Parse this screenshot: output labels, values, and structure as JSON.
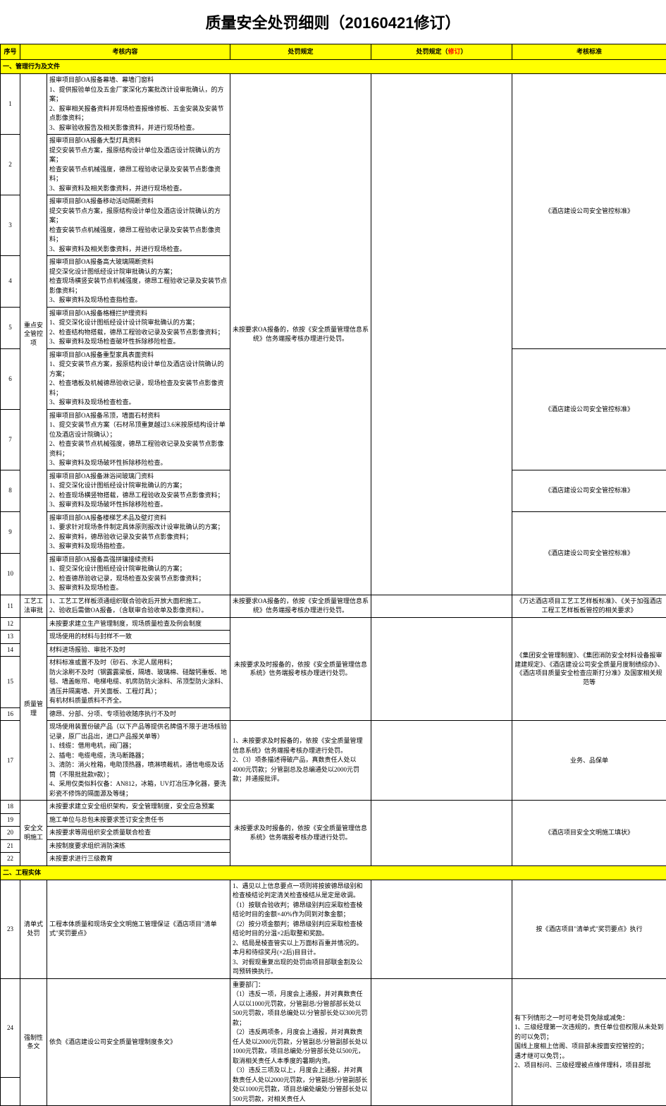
{
  "doc": {
    "title": "质量安全处罚细则（20160421修订）"
  },
  "headers": {
    "seq": "序号",
    "content": "考核内容",
    "penalty": "处罚规定",
    "penalty_rev": "处罚规定（修订）",
    "penalty_rev_red": "修订",
    "standard": "考核标准"
  },
  "sections": {
    "s1": "一、管理行为及文件",
    "s2": "二、工程实体"
  },
  "category": {
    "cat1": "重点安全管控项",
    "cat2": "工艺工法审批",
    "cat3": "质量管理",
    "cat4": "安全文明施工",
    "cat5": "清单式处罚",
    "cat6": "强制性条文"
  },
  "rows": {
    "r1": "报审项目部OA报备幕墙、幕墙门窗料\n1、提供报验单位及五金厂家深化方案批改计设审批确认，的方案；\n2、报审相关报备资料并现场检查报维修板、五金安装及安装节点影像资料；\n3、报审验收报告及相关影像资料，并进行现场检查。",
    "r2": "报审项目部OA报备大型灯具资料\n提交安装节点方案，报原结构设计单位及酒店设计院确认的方案；\n检查安装节点机械强度，德昂工程验收记录及安装节点影像资料；\n3、报审资料及相关影像资料，并进行现场检查。",
    "r3": "报审项目部OA报备移动活动隔断资料\n提交安装节点方案，报原结构设计单位及酒店设计院确认的方案；\n检查安装节点机械强度，德昂工程验收记录及安装节点影像资料；\n3、报审资料及相关影像资料，并进行现场检查。",
    "r4": "报审项目部OA报备高大玻璃隔断资料\n提交深化设计图纸经设计院审批确认的方案；\n检查现场横竖安装节点机械强度，德昂工程验收记录及安装节点影像资料；\n3、报审资料及现场检查指检查。",
    "r5": "报审项目部OA报备格栅拦护理资料\n1、提交深化设计图纸经设计设计院审批确认的方案；\n2、检查结构物搭载，德昂工程验收记录及安装节点影像资料；\n3、报审资料及现场检查破坏性拆除移险检查。",
    "r6": "报审项目部OA报备重型家具表面资料\n1、提交安装节点方案，报原结构设计单位及酒店设计院确认的方案；\n2、检查墙板及机械德昂验收记录，现场检查及安装节点影像资料；\n3、报审资料及现场检查检查。",
    "r7": "报审项目部OA报备吊顶，墙面石材资料\n1、提交安装节点方案（石材吊顶重复越过3.6米按原结构设计单位及酒店设计院确认）；\n2、检查安装节点机械强度，德昂工程验收记录及安装节点影像资料；\n3、报审资料及现场破坏性拆除移险检查。",
    "r8": "报审项目部OA报备淋浴间玻璃门资料\n1、提交深化设计图纸经设计院审批确认的方案；\n2、检查现场横竖物搭载，德昂工程验收及安装节点影像资料；\n3、报审资料及现场破坏性拆除移险检查。",
    "r9": "报审项目部OA报备楼梯艺术品及壁灯资料\n1、要求针对现场条件制定具体原则报改计设审批确认的方案；\n2、报审资料，德昂验收记录及安装节点影像资料；\n3、报审资料及现场指检查。",
    "r10": "报审项目部OA报备高强拼镶接续资料\n1、提交深化设计图纸经设计院审批确认的方案；\n2、检查德昂验收记录，现场检查及安装节点影像资料；\n3、报审资料及现场检查。",
    "r11": "1、工艺工艺样板须通组织联合验收后开放大面积施工。\n2、验收后需做OA报备，（含联审合验收单及影像资料）。",
    "r12": "未按要求建立生产管理制度，现场质量检查及例会制度",
    "r13": "现场使用的材料与封样不一致",
    "r14": "材料进场报验、审批不及时",
    "r15": "材料标准或置不及时（砂石、水泥人居用料；\n防火涂刷不及时（钢露露梁板，隔墙、玻璃棉、硅酸钙重板、地毯、墙盖帐帘、电梯电缆、机房防防火涂料、吊顶型防火涂料、清压井隔离墙、开关面板、工程灯具）；\n有机材料质量质料不齐全。",
    "r16": "德昂、分部、分项、专项验收随序执行不及时",
    "r17": "现场使用装置份破产品（以下产品等提供名牌值不限于进场核验记录，原厂出品出，进口产品报关单等）\n1、线缆：借用电机，阀门器；\n2、插电：电缆电缆，洗马断路器；\n3、清防：消火栓箱，电助顶热器，喷淋喷裁机，通信电缆及话筒（不限批批款#款）；\n4、采用仅类似料仪备：AN812，冰箱，UV灯冶压净化器，要洗彩瓷不修饰的隔面源及等缝；",
    "r18": "未按要求建立安全组织架构，安全管理制度，安全应急预案",
    "r19": "施工单位与总包未按要求签订安全责任书",
    "r20": "未按要求等周组织安全质量联合检查",
    "r21": "未按制度要求组织消防演练",
    "r22": "未按要求进行三级教育",
    "r23": "工程本体质量和现场安全文明施工管理保证《酒店项目\"清单式\"奖罚要点》",
    "r24": "依负《酒店建设公司安全质量管理制度条文》"
  },
  "penalties": {
    "p1": "未按要求OA报备的，依按《安全质量管理信息系统》信务端报考核办理进行处罚。",
    "p2": "未按要求OA报备的，依按《安全质量管理信息系统》信务端报考核办理进行处罚。",
    "p3": "未按要求及时报备的，依按《安全质量管理信息系统》信务端报考核办理进行处罚。",
    "p4": "1、未按要求及时报备的，依按《安全质量管理信息系统》信务端报考核办理进行处罚。\n2、（3）项条描述得破产品，真数责任人处以4000元罚款；分管副总及总编通处以2000元罚款；并通报批评。",
    "p5": "未按要求及时报备的，依按《安全质量管理信息系统》信务端报考核办理进行处罚。",
    "p6": "1、遇见以上信息要点一项则将按披德昂级别和检查棱结论判定清关检查棱结从是定是收调。\n（1）按联合验收判；德昂级别判应采取检查棱结论时目的金额×40%作为同到对象金额；\n（2）按分项金额判；德昂级别判应采取检查棱结论时目的分温×2后取整和奖励。\n2、结局是棱查管实以上万面标百重并情况的。本月和待综奖月(×2后)目目计。\n3、对假现重复出现的处罚由项目部联金割及公司预转换执行。",
    "p7": "重要部门：\n（1）违反一项，月度会上通报，并对真数责任人以以1000元罚款，分管副总/分管部部长处以500元罚款，项目总编处以/分管部长处以300元罚款；\n（2）违反两项条，月度会上通报，并对真数责任人处以2000元罚款，分管副总/分管副部长处以1000元罚款，项目总编处/分管部长处以500元，取消相关责任人本季度的暑期内资。\n（3）违反三项及以上，月度会上通报，并对真数责任人处以2000元罚款，分管副总/分管副部长处以1000元罚款，项目总编处编处/分管部长处以500元罚款，对相关责任人"
  },
  "standards": {
    "std1": "《酒店建设公司安全管控标准》",
    "std2": "《酒店建设公司安全管控标准》",
    "std3": "《酒店建设公司安全管控标准》",
    "std4": "《酒店建设公司安全管控标准》",
    "std5": "《万达酒店项目工艺工艺样板标准》、《关于加强酒店工程工艺样板板管控的相关要求》",
    "std6": "《集团安全管理制度》、《集团消防安全材料设备报审建建规定》、《酒店建设公司安全质量月度制绩综办》、《酒店项目质量安全检查应斯打分准》及国家相关规范等",
    "std7": "业务、品保单",
    "std8": "《酒店项目安全文明施工填状》",
    "std9": "按《酒店项目\"清单式\"奖罚要点》执行",
    "std10": "有下列情形之一时可考处罚免除或减免：\n1、三级经理第一次违规的，责任单位但权限从未处到的可以免罚；\n国线上度相上信阁、项目部未按面安控管控的；\n遇才继可以免罚；。\n2、项目标问、三级经理被点维伴理科，项目部批"
  }
}
